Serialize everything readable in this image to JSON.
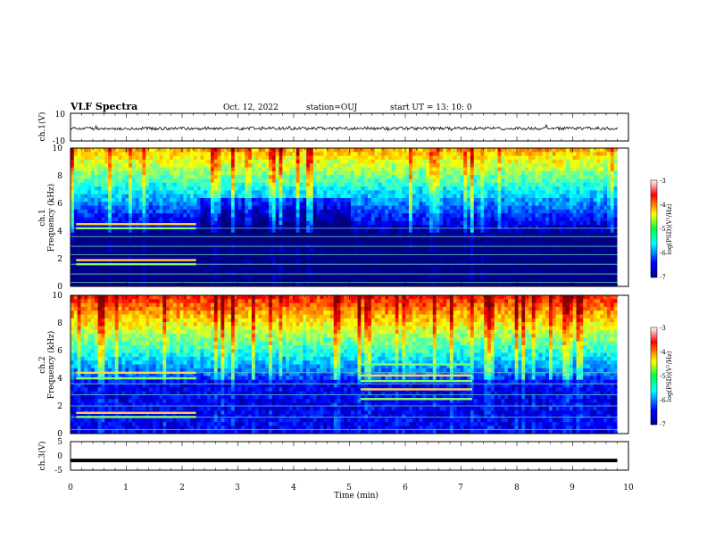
{
  "header": {
    "title": "VLF Spectra",
    "date": "Oct. 12, 2022",
    "station": "station=OUJ",
    "start": "start UT = 13: 10: 0"
  },
  "colors": {
    "waveform": "#000000",
    "ch3_line": "#000000",
    "background": "#ffffff"
  },
  "chart_data": [
    {
      "type": "line",
      "panel": "ch1-waveform",
      "ylabel": "ch.1(V)",
      "ylim": [
        -10,
        10
      ],
      "yticks": [
        "10",
        "-10"
      ],
      "xlim": [
        0,
        10
      ],
      "grid": false,
      "series": [
        {
          "values": "noisy signal near 0 V, spikes to about ±3 V"
        }
      ]
    },
    {
      "type": "heatmap",
      "panel": "ch1-spectrogram",
      "ylabel": "ch.1\nFrequency (kHz)",
      "ylim": [
        0,
        10
      ],
      "yticks": [
        "0",
        "2",
        "4",
        "6",
        "8",
        "10"
      ],
      "xlim": [
        0,
        9.8
      ],
      "colorbar": {
        "label": "log(PSD)(V²/Hz)",
        "ticks": [
          "-3",
          "-4",
          "-5",
          "-6",
          "-7"
        ],
        "range": [
          -7,
          -3
        ]
      },
      "horizontal_lines_khz": [
        0.3,
        0.9,
        1.6,
        2.3,
        2.9,
        3.6,
        4.2
      ],
      "features": [
        {
          "t_start": 0.1,
          "t_end": 2.25,
          "freq_khz": [
            1.6,
            1.9,
            4.2,
            4.5
          ],
          "level": -4.0
        }
      ]
    },
    {
      "type": "heatmap",
      "panel": "ch2-spectrogram",
      "ylabel": "ch.2\nFrequency (kHz)",
      "ylim": [
        0,
        10
      ],
      "yticks": [
        "0",
        "2",
        "4",
        "6",
        "8",
        "10"
      ],
      "xlim": [
        0,
        9.8
      ],
      "colorbar": {
        "label": "log(PSD)(V²/Hz)",
        "ticks": [
          "-3",
          "-4",
          "-5",
          "-6",
          "-7"
        ],
        "range": [
          -7,
          -3
        ]
      },
      "horizontal_lines_khz": [
        0.3,
        1.2,
        2.0,
        2.8,
        3.6,
        4.4
      ],
      "features": [
        {
          "t_start": 0.1,
          "t_end": 2.25,
          "freq_khz": [
            1.2,
            1.5,
            4.0,
            4.4
          ],
          "level": -4.0
        },
        {
          "t_start": 5.2,
          "t_end": 7.2,
          "freq_khz": [
            2.5,
            3.2,
            3.8,
            4.2,
            5.0
          ],
          "level": -4.3
        }
      ]
    },
    {
      "type": "line",
      "panel": "ch3-waveform",
      "ylabel": "ch.3(V)",
      "ylim": [
        -5,
        5
      ],
      "yticks": [
        "5",
        "0",
        "-5"
      ],
      "xlim": [
        0,
        10
      ],
      "series": [
        {
          "values": [
            -1.6,
            -1.6
          ]
        }
      ]
    }
  ],
  "xaxis": {
    "label": "Time (min)",
    "ticks": [
      "0",
      "1",
      "2",
      "3",
      "4",
      "5",
      "6",
      "7",
      "8",
      "9",
      "10"
    ],
    "range": [
      0,
      10
    ]
  }
}
